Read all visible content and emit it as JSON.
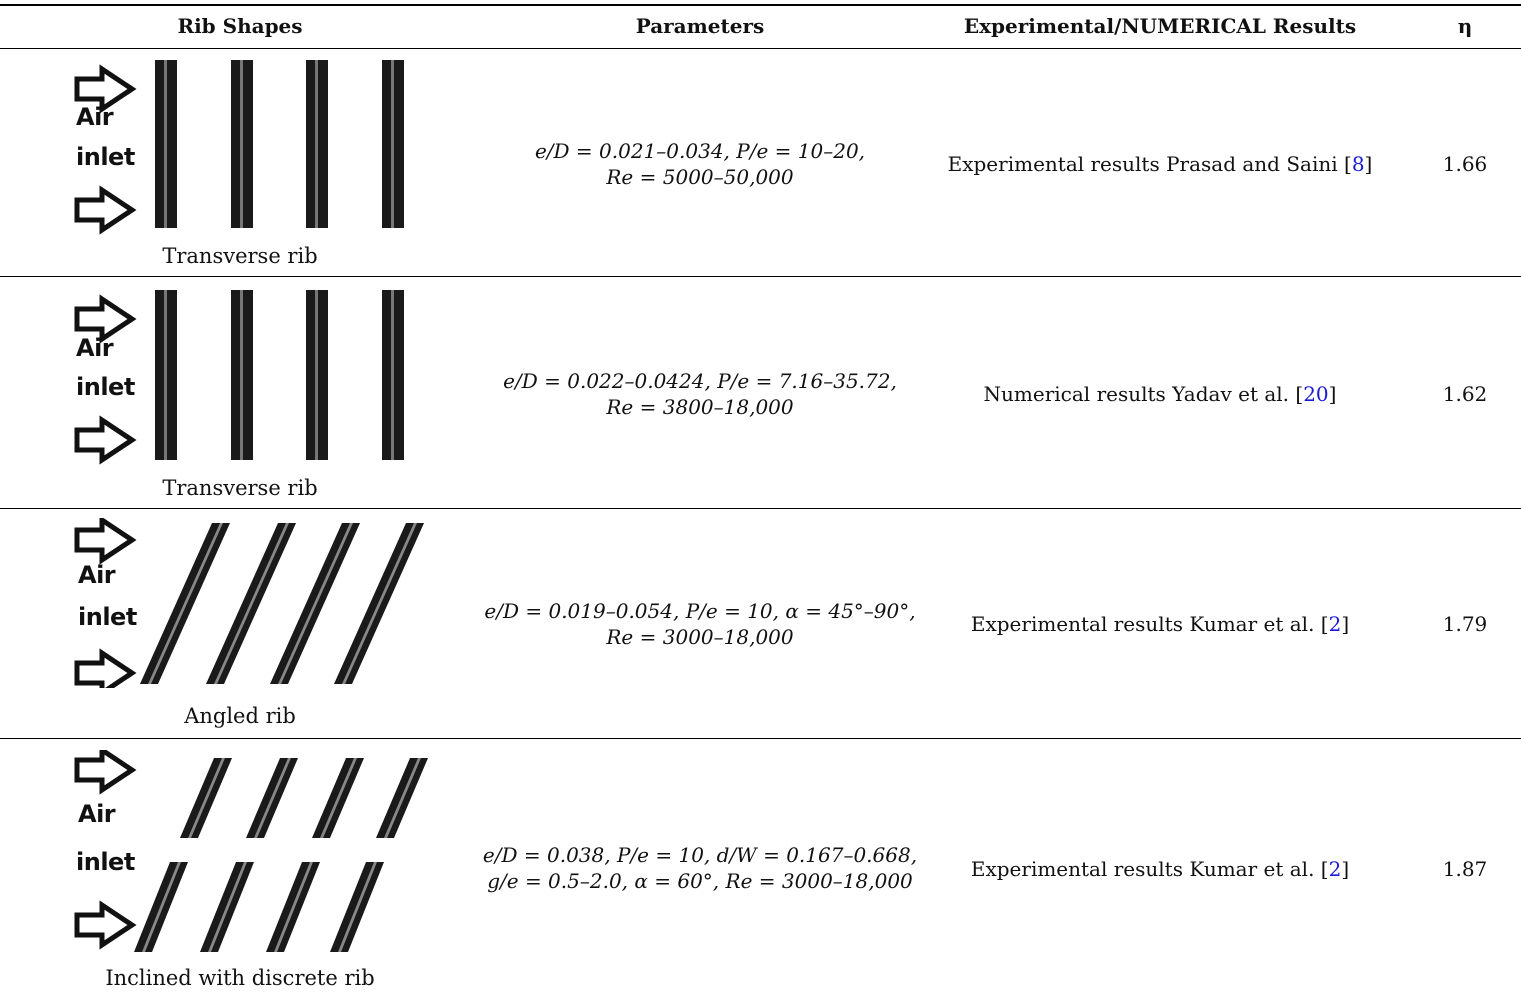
{
  "table": {
    "headers": {
      "rib_shapes": "Rib Shapes",
      "parameters": "Parameters",
      "results": "Experimental/NUMERICAL Results",
      "eta": "η"
    },
    "rows": [
      {
        "air": "Air",
        "inlet": "inlet",
        "caption": "Transverse rib",
        "param_line1": "e/D = 0.021–0.034, P/e = 10–20,",
        "param_line2": "Re = 5000–50,000",
        "result_text": "Experimental results Prasad and Saini [",
        "result_ref": "8",
        "result_close": "]",
        "eta": "1.66"
      },
      {
        "air": "Air",
        "inlet": "inlet",
        "caption": "Transverse rib",
        "param_line1": "e/D = 0.022–0.0424, P/e = 7.16–35.72,",
        "param_line2": "Re = 3800–18,000",
        "result_text": "Numerical results Yadav et al. [",
        "result_ref": "20",
        "result_close": "]",
        "eta": "1.62"
      },
      {
        "air": "Air",
        "inlet": "inlet",
        "caption": "Angled rib",
        "param_line1": "e/D = 0.019–0.054, P/e = 10, α = 45°–90°,",
        "param_line2": "Re = 3000–18,000",
        "result_text": "Experimental results Kumar et al. [",
        "result_ref": "2",
        "result_close": "]",
        "eta": "1.79"
      },
      {
        "air": "Air",
        "inlet": "inlet",
        "caption": "Inclined with discrete rib",
        "param_line1": "e/D = 0.038, P/e = 10, d/W = 0.167–0.668,",
        "param_line2": "g/e = 0.5–2.0, α = 60°, Re = 3000–18,000",
        "result_text": "Experimental results Kumar et al. [",
        "result_ref": "2",
        "result_close": "]",
        "eta": "1.87"
      }
    ]
  },
  "colors": {
    "link": "#1a1ad6",
    "rule": "#000000"
  }
}
